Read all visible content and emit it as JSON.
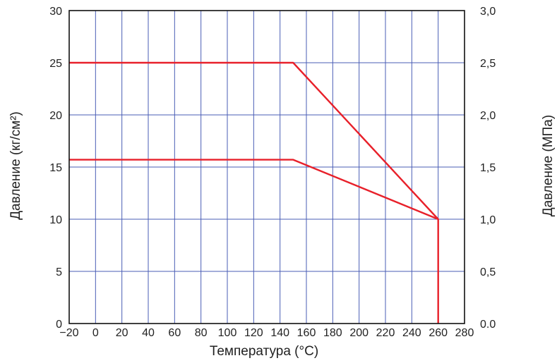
{
  "chart_data": {
    "type": "line",
    "title": "",
    "xlabel": "Температура (°С)",
    "ylabel_left": "Давление (кг/см²)",
    "ylabel_right": "Давление (МПа)",
    "xlim": [
      -20,
      280
    ],
    "ylim_left": [
      0,
      30
    ],
    "ylim_right": [
      0,
      3.0
    ],
    "grid": true,
    "x_ticks": [
      "−20",
      "0",
      "20",
      "40",
      "60",
      "80",
      "100",
      "120",
      "140",
      "160",
      "180",
      "200",
      "220",
      "240",
      "260",
      "280"
    ],
    "x_tick_values": [
      -20,
      0,
      20,
      40,
      60,
      80,
      100,
      120,
      140,
      160,
      180,
      200,
      220,
      240,
      260,
      280
    ],
    "y_left_ticks": [
      "0",
      "5",
      "10",
      "15",
      "20",
      "25",
      "30"
    ],
    "y_left_tick_values": [
      0,
      5,
      10,
      15,
      20,
      25,
      30
    ],
    "y_right_ticks": [
      "0.0",
      "0,5",
      "1,0",
      "1,5",
      "2,0",
      "2,5",
      "3,0"
    ],
    "colors": {
      "series": "#e8202a",
      "grid": "#4a5db5",
      "frame": "#111111"
    },
    "series": [
      {
        "x": [
          -20,
          150,
          260,
          260
        ],
        "y": [
          25,
          25,
          10,
          0
        ]
      },
      {
        "x": [
          -20,
          150,
          260
        ],
        "y": [
          15.7,
          15.7,
          10
        ]
      }
    ]
  }
}
